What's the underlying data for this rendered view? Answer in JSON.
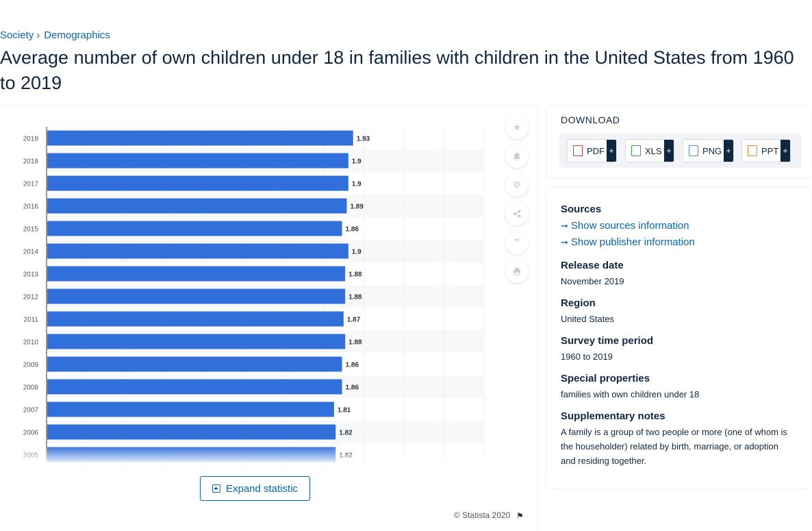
{
  "breadcrumb": {
    "items": [
      "Society",
      "Demographics"
    ],
    "separator": "›"
  },
  "page_title": "Average number of own children under 18 in families with children in the United States from 1960 to 2019",
  "chart_data": {
    "type": "bar",
    "orientation": "horizontal",
    "categories": [
      "2019",
      "2018",
      "2017",
      "2016",
      "2015",
      "2014",
      "2013",
      "2012",
      "2011",
      "2010",
      "2009",
      "2008",
      "2007",
      "2006",
      "2005"
    ],
    "values": [
      1.93,
      1.9,
      1.9,
      1.89,
      1.86,
      1.9,
      1.88,
      1.88,
      1.87,
      1.88,
      1.86,
      1.86,
      1.81,
      1.82,
      1.82
    ],
    "data_labels": [
      "1.93",
      "1.9",
      "1.9",
      "1.89",
      "1.86",
      "1.9",
      "1.88",
      "1.88",
      "1.87",
      "1.88",
      "1.86",
      "1.86",
      "1.81",
      "1.82",
      "1.82"
    ],
    "xlim": [
      0,
      2.75
    ],
    "grid": true,
    "bar_color": "#3170db",
    "title": "",
    "xlabel": "",
    "ylabel": ""
  },
  "toolbar": {
    "icons": [
      "star-icon",
      "bell-icon",
      "gear-icon",
      "share-icon",
      "quote-icon",
      "print-icon"
    ]
  },
  "expand_button": {
    "label": "Expand statistic"
  },
  "copyright": "© Statista 2020",
  "download": {
    "heading": "DOWNLOAD",
    "buttons": [
      {
        "label": "PDF",
        "color": "#d93a3a"
      },
      {
        "label": "XLS",
        "color": "#3aa14a"
      },
      {
        "label": "PNG",
        "color": "#4a8fd6"
      },
      {
        "label": "PPT",
        "color": "#e8842c"
      }
    ],
    "plus": "+"
  },
  "info": {
    "sources_heading": "Sources",
    "sources_link": "Show sources information",
    "publisher_link": "Show publisher information",
    "release_heading": "Release date",
    "release_value": "November 2019",
    "region_heading": "Region",
    "region_value": "United States",
    "survey_heading": "Survey time period",
    "survey_value": "1960 to 2019",
    "special_heading": "Special properties",
    "special_value": "families with own children under 18",
    "notes_heading": "Supplementary notes",
    "notes_value": "A family is a group of two people or more (one of whom is the householder) related by birth, marriage, or adoption and residing together."
  }
}
